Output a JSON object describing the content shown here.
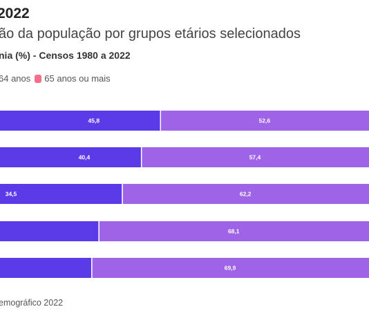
{
  "chart_data": {
    "type": "bar",
    "orientation": "horizontal",
    "stacked": true,
    "title": "2022",
    "subtitle": "ão da população por grupos etários selecionados",
    "caption": "nia (%) - Censos 1980 a 2022",
    "legend": [
      "64 anos",
      "65 anos ou mais"
    ],
    "legend_position": "top-left",
    "series": [
      {
        "values": [
          45.8,
          40.4,
          34.5,
          null,
          null
        ],
        "labels": [
          "45,8",
          "40,4",
          "34,5",
          "",
          ""
        ]
      },
      {
        "values": [
          52.6,
          57.4,
          62.2,
          68.1,
          69.9
        ],
        "labels": [
          "52,6",
          "57,4",
          "62,2",
          "68,1",
          "69,9"
        ]
      }
    ],
    "source": "emográfico 2022",
    "colors": {
      "series_young": "#5b3be8",
      "series_adult": "#9e63e6",
      "legend_65plus": "#f4708a"
    }
  }
}
